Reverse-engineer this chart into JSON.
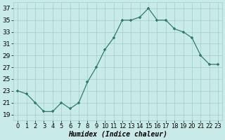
{
  "x": [
    0,
    1,
    2,
    3,
    4,
    5,
    6,
    7,
    8,
    9,
    10,
    11,
    12,
    13,
    14,
    15,
    16,
    17,
    18,
    19,
    20,
    21,
    22,
    23
  ],
  "y": [
    23,
    22.5,
    21,
    19.5,
    19.5,
    21,
    20,
    21,
    24.5,
    27,
    30,
    32,
    35,
    35,
    35.5,
    37,
    35,
    35,
    33.5,
    33,
    32,
    29,
    27.5,
    27.5
  ],
  "line_color": "#2e7d6e",
  "marker_color": "#2e7d6e",
  "bg_color": "#c8eae8",
  "grid_color": "#a0ccca",
  "xlabel": "Humidex (Indice chaleur)",
  "xlabel_fontsize": 7,
  "tick_fontsize": 6.5,
  "ylim": [
    18,
    38
  ],
  "yticks": [
    19,
    21,
    23,
    25,
    27,
    29,
    31,
    33,
    35,
    37
  ],
  "xlim": [
    -0.5,
    23.5
  ],
  "xticks": [
    0,
    1,
    2,
    3,
    4,
    5,
    6,
    7,
    8,
    9,
    10,
    11,
    12,
    13,
    14,
    15,
    16,
    17,
    18,
    19,
    20,
    21,
    22,
    23
  ]
}
